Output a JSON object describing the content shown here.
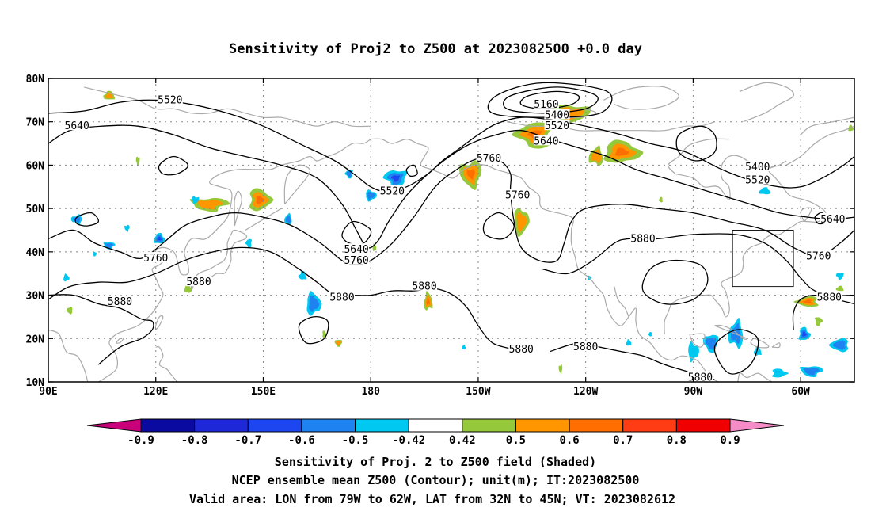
{
  "title": "Sensitivity of Proj2 to Z500 at 2023082500 +0.0 day",
  "map": {
    "lat_ticks": [
      "80N",
      "70N",
      "60N",
      "50N",
      "40N",
      "30N",
      "20N",
      "10N"
    ],
    "lon_ticks": [
      "90E",
      "120E",
      "150E",
      "180",
      "150W",
      "120W",
      "90W",
      "60W"
    ],
    "lon_range_deg_east": [
      90,
      315
    ],
    "lat_range": [
      10,
      80
    ],
    "coastline_color": "#aaaaaa",
    "contour_color": "#000000",
    "valid_area": {
      "lon": [
        -79,
        -62
      ],
      "lat": [
        32,
        45
      ]
    }
  },
  "contour_labels": [
    {
      "text": "5520",
      "lon": 124,
      "lat": 75
    },
    {
      "text": "5640",
      "lon": 98,
      "lat": 69
    },
    {
      "text": "5160",
      "lon": 229,
      "lat": 74
    },
    {
      "text": "5400",
      "lon": 232,
      "lat": 71.5
    },
    {
      "text": "5520",
      "lon": 232,
      "lat": 69
    },
    {
      "text": "5640",
      "lon": 229,
      "lat": 65.5
    },
    {
      "text": "5760",
      "lon": 213,
      "lat": 61.5
    },
    {
      "text": "5520",
      "lon": 186,
      "lat": 54
    },
    {
      "text": "5760",
      "lon": 221,
      "lat": 53
    },
    {
      "text": "5400",
      "lon": 288,
      "lat": 59.5
    },
    {
      "text": "5520",
      "lon": 288,
      "lat": 56.5
    },
    {
      "text": "5640",
      "lon": 309,
      "lat": 47.5
    },
    {
      "text": "5880",
      "lon": 256,
      "lat": 43
    },
    {
      "text": "5760",
      "lon": 305,
      "lat": 39
    },
    {
      "text": "5640",
      "lon": 176,
      "lat": 40.5
    },
    {
      "text": "5760",
      "lon": 176,
      "lat": 38
    },
    {
      "text": "5760",
      "lon": 120,
      "lat": 38.5
    },
    {
      "text": "5880",
      "lon": 132,
      "lat": 33
    },
    {
      "text": "5880",
      "lon": 110,
      "lat": 28.5
    },
    {
      "text": "5880",
      "lon": 172,
      "lat": 29.5
    },
    {
      "text": "5880",
      "lon": 195,
      "lat": 32
    },
    {
      "text": "5880",
      "lon": 222,
      "lat": 17.5
    },
    {
      "text": "5880",
      "lon": 240,
      "lat": 18
    },
    {
      "text": "5880",
      "lon": 308,
      "lat": 29.5
    },
    {
      "text": "5880",
      "lon": 272,
      "lat": 11
    }
  ],
  "colorbar": {
    "colors": [
      "#c8007a",
      "#0a0aa0",
      "#1e28d8",
      "#1e46f0",
      "#1e82f0",
      "#00c8f0",
      "#ffffff",
      "#96c83c",
      "#ff9600",
      "#ff6e00",
      "#ff3c14",
      "#f00000",
      "#f58cc8"
    ],
    "labels": [
      "-0.9",
      "-0.8",
      "-0.7",
      "-0.6",
      "-0.5",
      "-0.42",
      "0.42",
      "0.5",
      "0.6",
      "0.7",
      "0.8",
      "0.9"
    ]
  },
  "caption": {
    "line1": "Sensitivity of Proj. 2 to Z500 field (Shaded)",
    "line2": "NCEP ensemble mean Z500 (Contour); unit(m); IT:2023082500",
    "line3": "Valid area: LON from 79W to 62W, LAT from 32N to 45N; VT: 2023082612"
  },
  "blobs": [
    {
      "lon": 135,
      "lat": 51,
      "rx": 5,
      "ry": 1.5,
      "cls": [
        0.5,
        0.6
      ]
    },
    {
      "lon": 149,
      "lat": 52,
      "rx": 3,
      "ry": 2.5,
      "cls": [
        0.5,
        0.6,
        0.7
      ]
    },
    {
      "lon": 107,
      "lat": 76,
      "rx": 1.5,
      "ry": 1,
      "cls": [
        0.5,
        0.6
      ]
    },
    {
      "lon": 226,
      "lat": 67,
      "rx": 5,
      "ry": 3,
      "cls": [
        0.5,
        0.6,
        0.7
      ]
    },
    {
      "lon": 236,
      "lat": 72,
      "rx": 5,
      "ry": 2,
      "cls": [
        0.5,
        0.6
      ]
    },
    {
      "lon": 250,
      "lat": 63,
      "rx": 5,
      "ry": 2.5,
      "cls": [
        0.5,
        0.6,
        0.7
      ]
    },
    {
      "lon": 243,
      "lat": 62,
      "rx": 2,
      "ry": 2,
      "cls": [
        0.5,
        0.6
      ]
    },
    {
      "lon": 208,
      "lat": 58,
      "rx": 3,
      "ry": 3,
      "cls": [
        0.5,
        0.6,
        0.7
      ]
    },
    {
      "lon": 222,
      "lat": 47,
      "rx": 2,
      "ry": 3,
      "cls": [
        0.5,
        0.6
      ]
    },
    {
      "lon": 196,
      "lat": 28.5,
      "rx": 1.2,
      "ry": 2,
      "cls": [
        0.5,
        0.6,
        0.7
      ]
    },
    {
      "lon": 302,
      "lat": 28.5,
      "rx": 3,
      "ry": 1.2,
      "cls": [
        0.5,
        0.6,
        0.7
      ]
    },
    {
      "lon": 171,
      "lat": 19,
      "rx": 1,
      "ry": 0.8,
      "cls": [
        0.5,
        0.6
      ]
    },
    {
      "lon": 167,
      "lat": 21,
      "rx": 0.5,
      "ry": 0.8,
      "cls": [
        0.5
      ]
    },
    {
      "lon": 129,
      "lat": 31.5,
      "rx": 1,
      "ry": 1,
      "cls": [
        0.5
      ]
    },
    {
      "lon": 96,
      "lat": 26.5,
      "rx": 0.8,
      "ry": 0.8,
      "cls": [
        0.5
      ]
    },
    {
      "lon": 115,
      "lat": 61,
      "rx": 0.5,
      "ry": 1,
      "cls": [
        0.5
      ]
    },
    {
      "lon": 181,
      "lat": 41,
      "rx": 0.5,
      "ry": 0.8,
      "cls": [
        0.5
      ]
    },
    {
      "lon": 311,
      "lat": 31.5,
      "rx": 1,
      "ry": 0.6,
      "cls": [
        0.5
      ]
    },
    {
      "lon": 233,
      "lat": 13,
      "rx": 0.5,
      "ry": 1,
      "cls": [
        0.5
      ]
    },
    {
      "lon": 305,
      "lat": 24,
      "rx": 1,
      "ry": 1,
      "cls": [
        0.5
      ]
    },
    {
      "lon": 314,
      "lat": 68.5,
      "rx": 0.7,
      "ry": 0.7,
      "cls": [
        0.5
      ]
    },
    {
      "lon": 261,
      "lat": 52,
      "rx": 0.5,
      "ry": 0.6,
      "cls": [
        0.5
      ]
    },
    {
      "lon": 187,
      "lat": 57,
      "rx": 3,
      "ry": 2,
      "cls": [
        -0.42,
        -0.5,
        -0.6
      ]
    },
    {
      "lon": 180,
      "lat": 53,
      "rx": 1.5,
      "ry": 1.2,
      "cls": [
        -0.42,
        -0.5
      ]
    },
    {
      "lon": 121,
      "lat": 43,
      "rx": 1.5,
      "ry": 1.2,
      "cls": [
        -0.42,
        -0.5,
        -0.6
      ]
    },
    {
      "lon": 98,
      "lat": 47.5,
      "rx": 1.5,
      "ry": 1,
      "cls": [
        -0.42,
        -0.5
      ]
    },
    {
      "lon": 107,
      "lat": 41.5,
      "rx": 1.5,
      "ry": 0.8,
      "cls": [
        -0.42,
        -0.5
      ]
    },
    {
      "lon": 164,
      "lat": 28,
      "rx": 2,
      "ry": 2.5,
      "cls": [
        -0.42,
        -0.5
      ]
    },
    {
      "lon": 161,
      "lat": 34.5,
      "rx": 1,
      "ry": 1,
      "cls": [
        -0.42
      ]
    },
    {
      "lon": 174,
      "lat": 58,
      "rx": 1,
      "ry": 1,
      "cls": [
        -0.42,
        -0.5
      ]
    },
    {
      "lon": 98,
      "lat": 69,
      "rx": 1.2,
      "ry": 0.7,
      "cls": [
        -0.42
      ]
    },
    {
      "lon": 301,
      "lat": 21,
      "rx": 1.5,
      "ry": 1.5,
      "cls": [
        -0.42,
        -0.5,
        -0.6
      ]
    },
    {
      "lon": 282,
      "lat": 21,
      "rx": 2,
      "ry": 3,
      "cls": [
        -0.42,
        -0.5
      ]
    },
    {
      "lon": 275,
      "lat": 19,
      "rx": 2,
      "ry": 2,
      "cls": [
        -0.42,
        -0.5
      ]
    },
    {
      "lon": 270,
      "lat": 17,
      "rx": 1.5,
      "ry": 2,
      "cls": [
        -0.42
      ]
    },
    {
      "lon": 288,
      "lat": 17,
      "rx": 1,
      "ry": 1,
      "cls": [
        -0.42
      ]
    },
    {
      "lon": 311,
      "lat": 18.5,
      "rx": 2.5,
      "ry": 1.5,
      "cls": [
        -0.42,
        -0.5
      ]
    },
    {
      "lon": 303,
      "lat": 12.5,
      "rx": 3,
      "ry": 1.2,
      "cls": [
        -0.42,
        -0.5
      ]
    },
    {
      "lon": 294,
      "lat": 12,
      "rx": 2,
      "ry": 1,
      "cls": [
        -0.42
      ]
    },
    {
      "lon": 290,
      "lat": 54,
      "rx": 1.5,
      "ry": 0.8,
      "cls": [
        -0.42
      ]
    },
    {
      "lon": 146,
      "lat": 42,
      "rx": 0.8,
      "ry": 1,
      "cls": [
        -0.42
      ]
    },
    {
      "lon": 131,
      "lat": 52,
      "rx": 1,
      "ry": 0.8,
      "cls": [
        -0.42
      ]
    },
    {
      "lon": 95,
      "lat": 34,
      "rx": 0.8,
      "ry": 0.8,
      "cls": [
        -0.42
      ]
    },
    {
      "lon": 157,
      "lat": 47.5,
      "rx": 1,
      "ry": 1.2,
      "cls": [
        -0.42,
        -0.5
      ]
    },
    {
      "lon": 112,
      "lat": 45.5,
      "rx": 0.7,
      "ry": 0.7,
      "cls": [
        -0.42
      ]
    },
    {
      "lon": 103,
      "lat": 39.5,
      "rx": 0.5,
      "ry": 0.5,
      "cls": [
        -0.42
      ]
    },
    {
      "lon": 252,
      "lat": 19,
      "rx": 0.7,
      "ry": 0.7,
      "cls": [
        -0.42
      ]
    },
    {
      "lon": 258,
      "lat": 21,
      "rx": 0.5,
      "ry": 0.5,
      "cls": [
        -0.42
      ]
    },
    {
      "lon": 311,
      "lat": 34.5,
      "rx": 1,
      "ry": 0.8,
      "cls": [
        -0.42
      ]
    },
    {
      "lon": 241,
      "lat": 34,
      "rx": 0.5,
      "ry": 0.5,
      "cls": [
        -0.42
      ]
    },
    {
      "lon": 206,
      "lat": 18,
      "rx": 0.5,
      "ry": 0.5,
      "cls": [
        -0.42
      ]
    }
  ]
}
